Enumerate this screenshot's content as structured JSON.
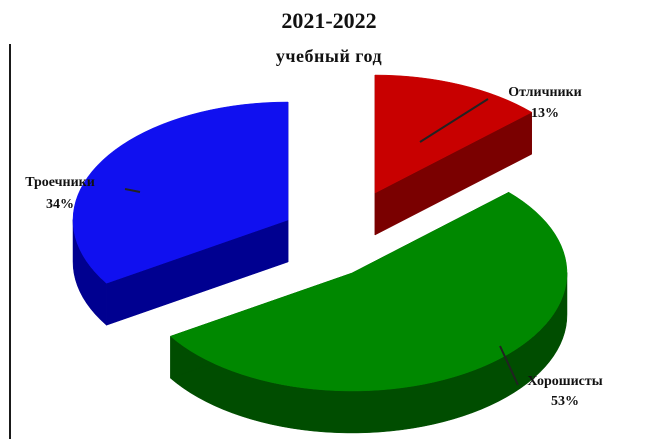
{
  "chart_data": {
    "type": "pie",
    "title": "2021-2022",
    "subtitle": "учебный год",
    "slices": [
      {
        "name": "Отличники",
        "value": 13,
        "label": "13%",
        "color": "#c80000",
        "side_color": "#7a0000"
      },
      {
        "name": "Хорошисты",
        "value": 53,
        "label": "53%",
        "color": "#008800",
        "side_color": "#004d00"
      },
      {
        "name": "Троечники",
        "value": 34,
        "label": "34%",
        "color": "#1010f0",
        "side_color": "#000090"
      }
    ],
    "style": "3d-exploded",
    "legend": "none"
  }
}
